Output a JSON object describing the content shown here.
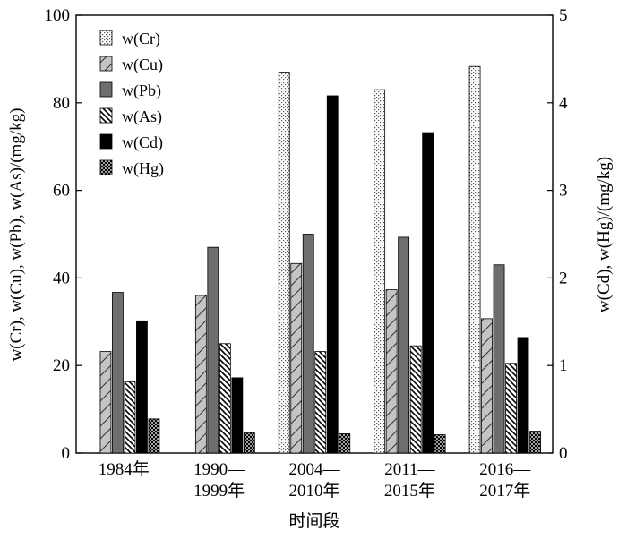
{
  "chart_data": {
    "type": "bar",
    "categories": [
      [
        "1984年"
      ],
      [
        "1990—",
        "1999年"
      ],
      [
        "2004—",
        "2010年"
      ],
      [
        "2011—",
        "2015年"
      ],
      [
        "2016—",
        "2017年"
      ]
    ],
    "xlabel": "时间段",
    "ylabel_left": "w(Cr), w(Cu), w(Pb), w(As)/(mg/kg)",
    "ylabel_right": "w(Cd), w(Hg)/(mg/kg)",
    "ylim_left": [
      0,
      100
    ],
    "ylim_right": [
      0,
      5
    ],
    "yticks_left": [
      "0",
      "20",
      "40",
      "60",
      "80",
      "100"
    ],
    "yticks_right": [
      "0",
      "1",
      "2",
      "3",
      "4",
      "5"
    ],
    "legend_position": "top-left",
    "series": [
      {
        "name": "w(Cr)",
        "axis": "left",
        "pattern": "dots",
        "values": [
          null,
          null,
          87.0,
          83.0,
          88.3
        ]
      },
      {
        "name": "w(Cu)",
        "axis": "left",
        "pattern": "light-diagonal",
        "values": [
          23.2,
          36.0,
          43.3,
          37.3,
          30.7
        ]
      },
      {
        "name": "w(Pb)",
        "axis": "left",
        "pattern": "dark-gray",
        "values": [
          36.7,
          47.0,
          50.0,
          49.3,
          43.0
        ]
      },
      {
        "name": "w(As)",
        "axis": "left",
        "pattern": "back-diagonal",
        "values": [
          16.3,
          25.0,
          23.2,
          24.5,
          20.5
        ]
      },
      {
        "name": "w(Cd)",
        "axis": "right",
        "pattern": "black",
        "values": [
          1.51,
          0.86,
          4.08,
          3.66,
          1.32
        ]
      },
      {
        "name": "w(Hg)",
        "axis": "right",
        "pattern": "crosshatch",
        "values": [
          0.39,
          0.23,
          0.22,
          0.21,
          0.25
        ]
      }
    ]
  }
}
